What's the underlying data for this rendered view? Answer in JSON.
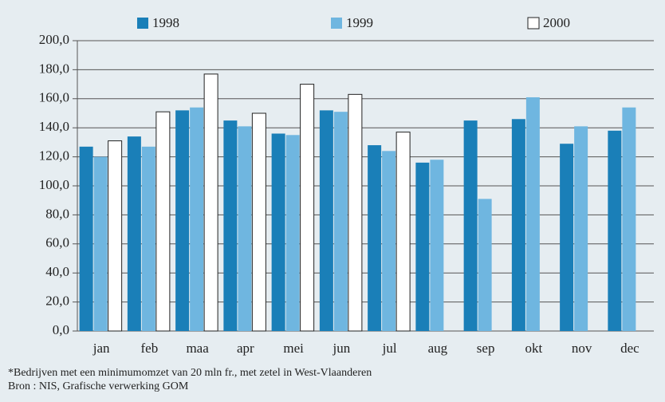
{
  "chart_data": {
    "type": "bar",
    "categories": [
      "jan",
      "feb",
      "maa",
      "apr",
      "mei",
      "jun",
      "jul",
      "aug",
      "sep",
      "okt",
      "nov",
      "dec"
    ],
    "series": [
      {
        "name": "1998",
        "color": "#1a7fb8",
        "values": [
          127,
          134,
          152,
          145,
          136,
          152,
          128,
          116,
          145,
          146,
          129,
          138
        ]
      },
      {
        "name": "1999",
        "color": "#6fb6e0",
        "values": [
          120,
          127,
          154,
          141,
          135,
          151,
          124,
          118,
          91,
          161,
          141,
          154
        ]
      },
      {
        "name": "2000",
        "color": "#ffffff",
        "values": [
          131,
          151,
          177,
          150,
          170,
          163,
          137,
          null,
          null,
          null,
          null,
          null
        ]
      }
    ],
    "ylim": [
      0,
      200
    ],
    "yticks": [
      {
        "value": 0,
        "label": "0,0"
      },
      {
        "value": 20,
        "label": "20,0"
      },
      {
        "value": 40,
        "label": "40,0"
      },
      {
        "value": 60,
        "label": "60,0"
      },
      {
        "value": 80,
        "label": "80,0"
      },
      {
        "value": 100,
        "label": "100,0"
      },
      {
        "value": 120,
        "label": "120,0"
      },
      {
        "value": 140,
        "label": "140,0"
      },
      {
        "value": 160,
        "label": "160,0"
      },
      {
        "value": 180,
        "label": "180,0"
      },
      {
        "value": 200,
        "label": "200,0"
      }
    ],
    "grid": true,
    "notes": [
      "*Bedrijven met een minimumomzet van 20 mln fr., met zetel in West-Vlaanderen",
      "Bron : NIS, Grafische verwerking GOM"
    ]
  }
}
